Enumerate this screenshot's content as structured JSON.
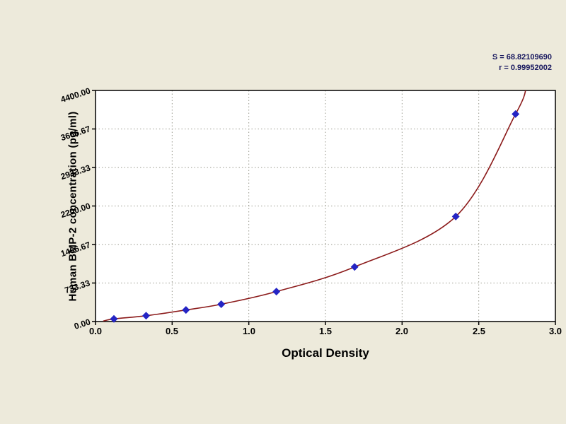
{
  "axes": {
    "xlabel": "Optical Density",
    "ylabel": "Human BMP-2 concentration (pg/ml)"
  },
  "annotation": {
    "line1": "S = 68.82109690",
    "line2": "r = 0.99952002"
  },
  "chart_data": {
    "type": "scatter",
    "title": "",
    "xlabel": "Optical Density",
    "ylabel": "Human BMP-2 concentration (pg/ml)",
    "xlim": [
      0,
      3.0
    ],
    "ylim": [
      0,
      4400
    ],
    "x_ticks": [
      0,
      0.5,
      1,
      1.5,
      2,
      2.5,
      3
    ],
    "x_tick_labels": [
      "0.0",
      "0.5",
      "1.0",
      "1.5",
      "2.0",
      "2.5",
      "3.0"
    ],
    "y_ticks": [
      0,
      733.33,
      1466.67,
      2200,
      2933.33,
      3666.67,
      4400
    ],
    "y_tick_labels": [
      "0.00",
      "733.33",
      "1466.67",
      "2200.00",
      "2933.33",
      "3666.67",
      "4400.00"
    ],
    "grid": true,
    "legend": "none",
    "annotations": [
      "S = 68.82109690",
      "r = 0.99952002"
    ],
    "series": [
      {
        "name": "standard-points",
        "type": "scatter",
        "marker": "diamond",
        "color": "#2424c4",
        "points": [
          [
            0.12,
            50
          ],
          [
            0.33,
            110
          ],
          [
            0.59,
            220
          ],
          [
            0.82,
            330
          ],
          [
            1.18,
            570
          ],
          [
            1.69,
            1040
          ],
          [
            2.35,
            2000
          ],
          [
            2.74,
            3950
          ]
        ]
      },
      {
        "name": "fit-curve",
        "type": "line",
        "color": "#8b1a1a",
        "points": [
          [
            0.05,
            10
          ],
          [
            0.12,
            50
          ],
          [
            0.33,
            110
          ],
          [
            0.59,
            220
          ],
          [
            0.82,
            330
          ],
          [
            1.18,
            570
          ],
          [
            1.69,
            1040
          ],
          [
            2.35,
            2000
          ],
          [
            2.74,
            3950
          ],
          [
            2.81,
            4450
          ]
        ]
      }
    ],
    "colors": {
      "background": "#edeadb",
      "plot_background": "#ffffff",
      "grid": "#9a9a8e",
      "border": "#000000",
      "point": "#2424c4",
      "curve": "#8b1a1a",
      "annotation_text": "#17175e"
    }
  }
}
